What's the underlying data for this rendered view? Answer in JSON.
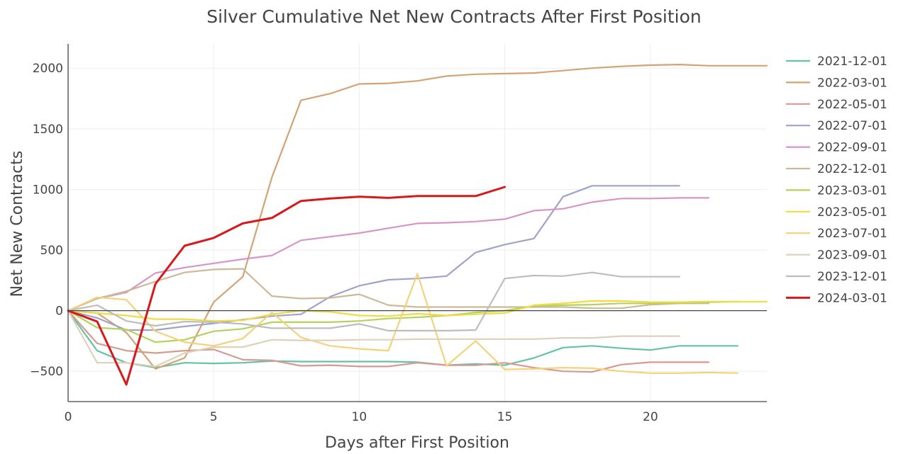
{
  "chart_data": {
    "type": "line",
    "title": "Silver Cumulative Net New Contracts After First Position",
    "xlabel": "Days after First Position",
    "ylabel": "Net New Contracts",
    "xlim": [
      0,
      24
    ],
    "ylim": [
      -750,
      2200
    ],
    "x_ticks": [
      0,
      5,
      10,
      15,
      20
    ],
    "y_ticks": [
      -500,
      0,
      500,
      1000,
      1500,
      2000
    ],
    "grid": true,
    "zero_line": true,
    "legend_position": "right",
    "series": [
      {
        "name": "2021-12-01",
        "color": "#66c2a5",
        "width": 2.2,
        "x": [
          0,
          1,
          2,
          3,
          4,
          5,
          6,
          7,
          8,
          9,
          10,
          11,
          12,
          13,
          14,
          15,
          16,
          17,
          18,
          19,
          20,
          21,
          22,
          23
        ],
        "y": [
          0,
          -330,
          -430,
          -470,
          -430,
          -435,
          -430,
          -415,
          -420,
          -420,
          -420,
          -420,
          -425,
          -450,
          -440,
          -450,
          -390,
          -305,
          -290,
          -310,
          -325,
          -290,
          -290,
          -290
        ]
      },
      {
        "name": "2022-03-01",
        "color": "#d4a373",
        "width": 2.2,
        "x": [
          0,
          1,
          2,
          3,
          4,
          5,
          6,
          7,
          8,
          9,
          10,
          11,
          12,
          13,
          14,
          15,
          16,
          17,
          18,
          19,
          20,
          21,
          22,
          23,
          24
        ],
        "y": [
          0,
          -20,
          -180,
          -480,
          -390,
          70,
          280,
          1100,
          1735,
          1790,
          1870,
          1875,
          1895,
          1935,
          1950,
          1955,
          1960,
          1980,
          2000,
          2015,
          2025,
          2030,
          2020,
          2020,
          2020
        ]
      },
      {
        "name": "2022-05-01",
        "color": "#d89a90",
        "width": 2.2,
        "x": [
          0,
          1,
          2,
          3,
          4,
          5,
          6,
          7,
          8,
          9,
          10,
          11,
          12,
          13,
          14,
          15,
          16,
          17,
          18,
          19,
          20,
          21,
          22
        ],
        "y": [
          0,
          -270,
          -330,
          -350,
          -330,
          -320,
          -405,
          -410,
          -455,
          -450,
          -460,
          -460,
          -430,
          -450,
          -450,
          -430,
          -470,
          -500,
          -505,
          -445,
          -425,
          -425,
          -425
        ]
      },
      {
        "name": "2022-07-01",
        "color": "#9fa3cc",
        "width": 2.2,
        "x": [
          0,
          1,
          2,
          3,
          4,
          5,
          6,
          7,
          8,
          9,
          10,
          11,
          12,
          13,
          14,
          15,
          16,
          17,
          18,
          19,
          20,
          21
        ],
        "y": [
          0,
          -60,
          -160,
          -160,
          -130,
          -105,
          -75,
          -45,
          -30,
          115,
          205,
          255,
          265,
          285,
          480,
          545,
          595,
          940,
          1030,
          1030,
          1030,
          1030
        ]
      },
      {
        "name": "2022-09-01",
        "color": "#d894c8",
        "width": 2.2,
        "x": [
          0,
          1,
          2,
          3,
          4,
          5,
          6,
          7,
          8,
          9,
          10,
          11,
          12,
          13,
          14,
          15,
          16,
          17,
          18,
          19,
          20,
          21,
          22
        ],
        "y": [
          0,
          100,
          150,
          310,
          355,
          390,
          425,
          455,
          580,
          610,
          640,
          680,
          720,
          725,
          735,
          755,
          825,
          840,
          895,
          925,
          925,
          930,
          930
        ]
      },
      {
        "name": "2022-12-01",
        "color": "#cbb99a",
        "width": 2.2,
        "x": [
          0,
          1,
          2,
          3,
          4,
          5,
          6,
          7,
          8,
          9,
          10,
          11,
          12,
          13,
          14,
          15,
          16,
          17,
          18,
          19,
          20,
          21,
          22
        ],
        "y": [
          0,
          100,
          160,
          240,
          315,
          340,
          345,
          120,
          100,
          105,
          135,
          45,
          30,
          30,
          30,
          30,
          30,
          30,
          20,
          20,
          50,
          60,
          60
        ]
      },
      {
        "name": "2023-03-01",
        "color": "#b3d35e",
        "width": 2.2,
        "x": [
          0,
          1,
          2,
          3,
          4,
          5,
          6,
          7,
          8,
          9,
          10,
          11,
          12,
          13,
          14,
          15,
          16,
          17,
          18,
          19,
          20,
          21,
          22,
          23
        ],
        "y": [
          0,
          -140,
          -155,
          -260,
          -240,
          -170,
          -150,
          -95,
          -95,
          -95,
          -85,
          -65,
          -55,
          -40,
          -15,
          0,
          40,
          45,
          50,
          60,
          60,
          65,
          70,
          75
        ]
      },
      {
        "name": "2023-05-01",
        "color": "#eedc40",
        "width": 2.2,
        "x": [
          0,
          1,
          2,
          3,
          4,
          5,
          6,
          7,
          8,
          9,
          10,
          11,
          12,
          13,
          14,
          15,
          16,
          17,
          18,
          19,
          20,
          21,
          22,
          23,
          24
        ],
        "y": [
          0,
          -20,
          -40,
          -70,
          -70,
          -85,
          -80,
          -30,
          0,
          -10,
          -40,
          -45,
          -25,
          -40,
          -30,
          -20,
          45,
          60,
          80,
          80,
          70,
          70,
          75,
          75,
          75
        ]
      },
      {
        "name": "2023-07-01",
        "color": "#f3d27a",
        "width": 2.2,
        "x": [
          0,
          1,
          2,
          3,
          4,
          5,
          6,
          7,
          8,
          9,
          10,
          11,
          12,
          13,
          14,
          15,
          16,
          17,
          18,
          19,
          20,
          21,
          22,
          23
        ],
        "y": [
          0,
          110,
          90,
          -170,
          -260,
          -290,
          -230,
          -15,
          -220,
          -290,
          -315,
          -330,
          305,
          -455,
          -250,
          -485,
          -480,
          -470,
          -475,
          -500,
          -515,
          -515,
          -510,
          -515
        ]
      },
      {
        "name": "2023-09-01",
        "color": "#ddd1ba",
        "width": 2.2,
        "x": [
          0,
          1,
          2,
          3,
          4,
          5,
          6,
          7,
          8,
          9,
          10,
          11,
          12,
          13,
          14,
          15,
          16,
          17,
          18,
          19,
          20,
          21
        ],
        "y": [
          0,
          -430,
          -430,
          -460,
          -350,
          -300,
          -300,
          -240,
          -245,
          -245,
          -240,
          -240,
          -235,
          -235,
          -235,
          -235,
          -235,
          -225,
          -225,
          -210,
          -210,
          -210
        ]
      },
      {
        "name": "2023-12-01",
        "color": "#bdbdbd",
        "width": 2.2,
        "x": [
          0,
          1,
          2,
          3,
          4,
          5,
          6,
          7,
          8,
          9,
          10,
          11,
          12,
          13,
          14,
          15,
          16,
          17,
          18,
          19,
          20,
          21
        ],
        "y": [
          0,
          45,
          -85,
          -125,
          -90,
          -95,
          -110,
          -145,
          -145,
          -145,
          -110,
          -165,
          -165,
          -165,
          -160,
          265,
          290,
          285,
          315,
          280,
          280,
          280
        ]
      },
      {
        "name": "2024-03-01",
        "color": "#d7191c",
        "width": 3,
        "x": [
          0,
          1,
          2,
          3,
          4,
          5,
          6,
          7,
          8,
          9,
          10,
          11,
          12,
          13,
          14,
          15
        ],
        "y": [
          0,
          -90,
          -610,
          220,
          535,
          600,
          720,
          765,
          905,
          925,
          940,
          930,
          945,
          945,
          945,
          1020
        ]
      }
    ]
  }
}
